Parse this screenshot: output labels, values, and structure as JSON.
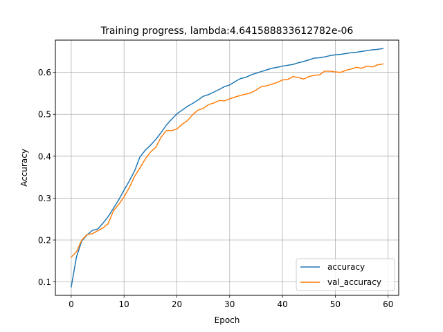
{
  "chart_data": {
    "type": "line",
    "title": "Training progress, lambda:4.641588833612782e-06",
    "xlabel": "Epoch",
    "ylabel": "Accuracy",
    "xlim": [
      -3,
      62
    ],
    "ylim": [
      0.068,
      0.677
    ],
    "xticks": [
      0,
      10,
      20,
      30,
      40,
      50,
      60
    ],
    "yticks": [
      0.1,
      0.2,
      0.3,
      0.4,
      0.5,
      0.6
    ],
    "ytick_labels": [
      "0.1",
      "0.2",
      "0.3",
      "0.4",
      "0.5",
      "0.6"
    ],
    "grid": true,
    "legend_position": "lower right",
    "x": [
      0,
      1,
      2,
      3,
      4,
      5,
      6,
      7,
      8,
      9,
      10,
      11,
      12,
      13,
      14,
      15,
      16,
      17,
      18,
      19,
      20,
      21,
      22,
      23,
      24,
      25,
      26,
      27,
      28,
      29,
      30,
      31,
      32,
      33,
      34,
      35,
      36,
      37,
      38,
      39,
      40,
      41,
      42,
      43,
      44,
      45,
      46,
      47,
      48,
      49,
      50,
      51,
      52,
      53,
      54,
      55,
      56,
      57,
      58,
      59
    ],
    "series": [
      {
        "name": "accuracy",
        "color": "#1f77b4",
        "values": [
          0.088,
          0.16,
          0.198,
          0.212,
          0.223,
          0.226,
          0.24,
          0.256,
          0.276,
          0.296,
          0.319,
          0.341,
          0.365,
          0.398,
          0.414,
          0.426,
          0.44,
          0.456,
          0.474,
          0.488,
          0.501,
          0.51,
          0.519,
          0.526,
          0.534,
          0.543,
          0.547,
          0.553,
          0.559,
          0.566,
          0.57,
          0.578,
          0.585,
          0.588,
          0.594,
          0.598,
          0.602,
          0.606,
          0.61,
          0.612,
          0.615,
          0.617,
          0.619,
          0.623,
          0.626,
          0.63,
          0.634,
          0.635,
          0.637,
          0.64,
          0.642,
          0.643,
          0.645,
          0.647,
          0.648,
          0.65,
          0.652,
          0.654,
          0.655,
          0.657
        ]
      },
      {
        "name": "val_accuracy",
        "color": "#ff7f0e",
        "values": [
          0.159,
          0.172,
          0.2,
          0.213,
          0.215,
          0.222,
          0.229,
          0.239,
          0.27,
          0.285,
          0.303,
          0.325,
          0.352,
          0.372,
          0.393,
          0.41,
          0.421,
          0.445,
          0.461,
          0.461,
          0.465,
          0.476,
          0.485,
          0.499,
          0.51,
          0.514,
          0.523,
          0.527,
          0.533,
          0.532,
          0.537,
          0.541,
          0.545,
          0.548,
          0.551,
          0.558,
          0.566,
          0.568,
          0.572,
          0.576,
          0.582,
          0.583,
          0.59,
          0.588,
          0.584,
          0.59,
          0.593,
          0.594,
          0.603,
          0.603,
          0.601,
          0.6,
          0.605,
          0.608,
          0.612,
          0.61,
          0.615,
          0.613,
          0.618,
          0.62
        ]
      }
    ]
  }
}
